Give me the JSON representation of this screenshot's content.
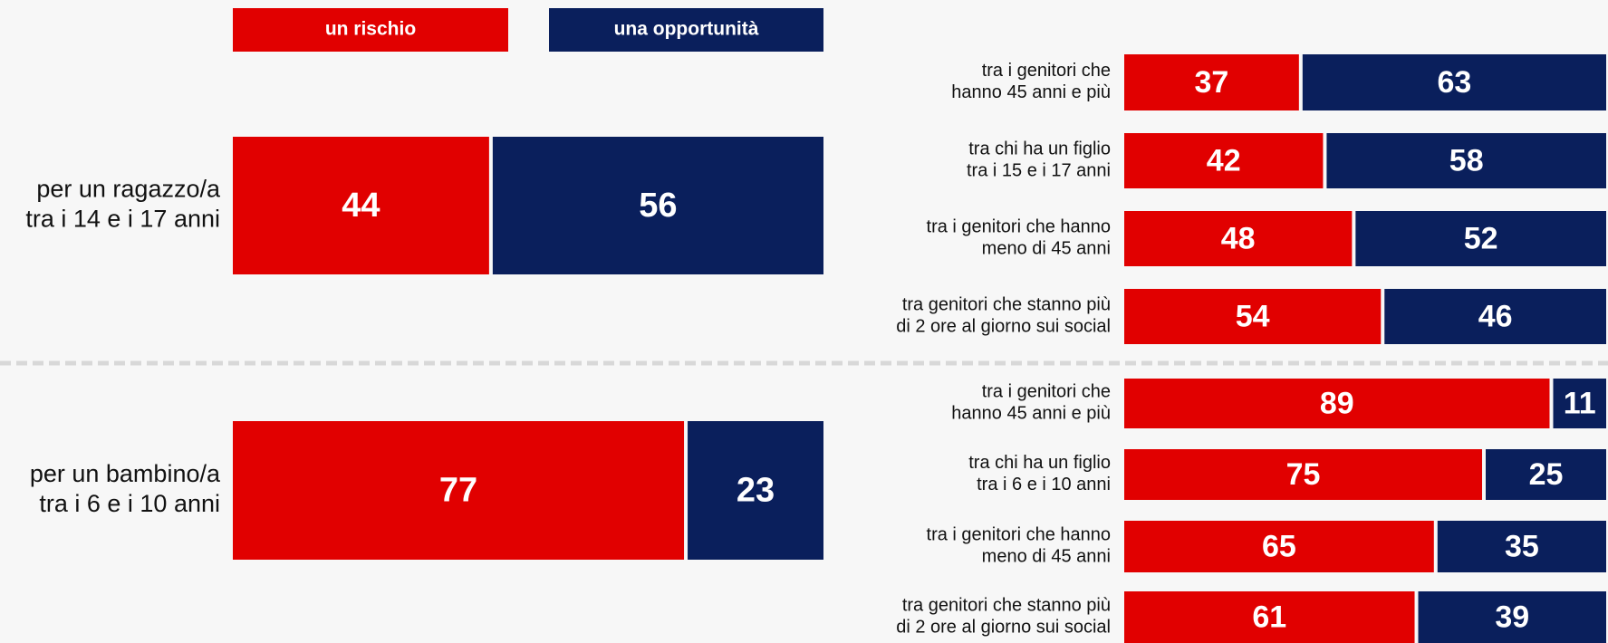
{
  "chart_data": [
    {
      "type": "bar",
      "orientation": "horizontal",
      "stacked": true,
      "xlim": [
        0,
        100
      ],
      "categories": [
        [
          "per un ragazzo/a",
          "tra i 14 e i 17 anni"
        ],
        [
          "per un bambino/a",
          "tra i 6 e i 10 anni"
        ]
      ],
      "series": [
        {
          "name": "un rischio",
          "color": "#e10000",
          "values": [
            44,
            77
          ]
        },
        {
          "name": "una opportunità",
          "color": "#0a1f5c",
          "values": [
            56,
            23
          ]
        }
      ]
    },
    {
      "type": "bar",
      "orientation": "horizontal",
      "stacked": true,
      "xlim": [
        0,
        100
      ],
      "categories": [
        [
          "tra i genitori che",
          "hanno 45 anni e più"
        ],
        [
          "tra chi ha un figlio",
          "tra i 15 e i 17 anni"
        ],
        [
          "tra i genitori che hanno",
          "meno di 45 anni"
        ],
        [
          "tra genitori che stanno più",
          "di 2 ore al giorno sui social"
        ],
        [
          "tra i genitori che",
          "hanno 45 anni e più"
        ],
        [
          "tra chi ha un figlio",
          "tra i 6 e i 10 anni"
        ],
        [
          "tra i genitori che hanno",
          "meno di 45 anni"
        ],
        [
          "tra genitori che stanno più",
          "di 2 ore al giorno sui social"
        ]
      ],
      "series": [
        {
          "color": "#e10000",
          "values": [
            37,
            42,
            48,
            54,
            89,
            75,
            65,
            61
          ]
        },
        {
          "color": "#0a1f5c",
          "values": [
            63,
            58,
            52,
            46,
            11,
            25,
            35,
            39
          ]
        }
      ]
    }
  ]
}
